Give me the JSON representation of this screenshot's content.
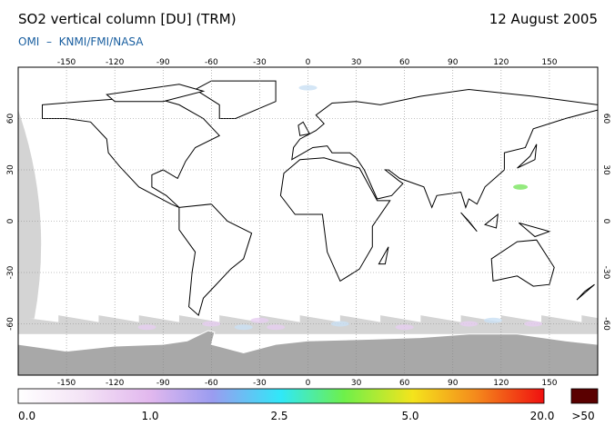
{
  "header": {
    "title": "SO2 vertical column [DU] (TRM)",
    "date": "12 August 2005",
    "source": "OMI  –  KNMI/FMI/NASA"
  },
  "map": {
    "lon_ticks": [
      -150,
      -120,
      -90,
      -60,
      -30,
      0,
      30,
      60,
      90,
      120,
      150
    ],
    "lat_ticks": [
      60,
      30,
      0,
      -30,
      -60
    ]
  },
  "colorbar": {
    "labels": [
      "0.0",
      "1.0",
      "2.5",
      "5.0",
      "20.0"
    ],
    "overflow_label": ">50"
  }
}
